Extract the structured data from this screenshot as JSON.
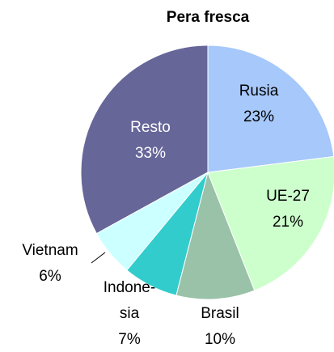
{
  "chart_data": {
    "type": "pie",
    "title": "Pera fresca",
    "categories": [
      "Rusia",
      "UE-27",
      "Brasil",
      "Indone-\nsia",
      "Vietnam",
      "Resto"
    ],
    "values": [
      23,
      21,
      10,
      7,
      6,
      33
    ],
    "value_labels": [
      "23%",
      "21%",
      "10%",
      "7%",
      "6%",
      "33%"
    ],
    "colors": [
      "#a6c8fa",
      "#ccffcc",
      "#99c2a8",
      "#33cccc",
      "#ccffff",
      "#666699"
    ]
  }
}
